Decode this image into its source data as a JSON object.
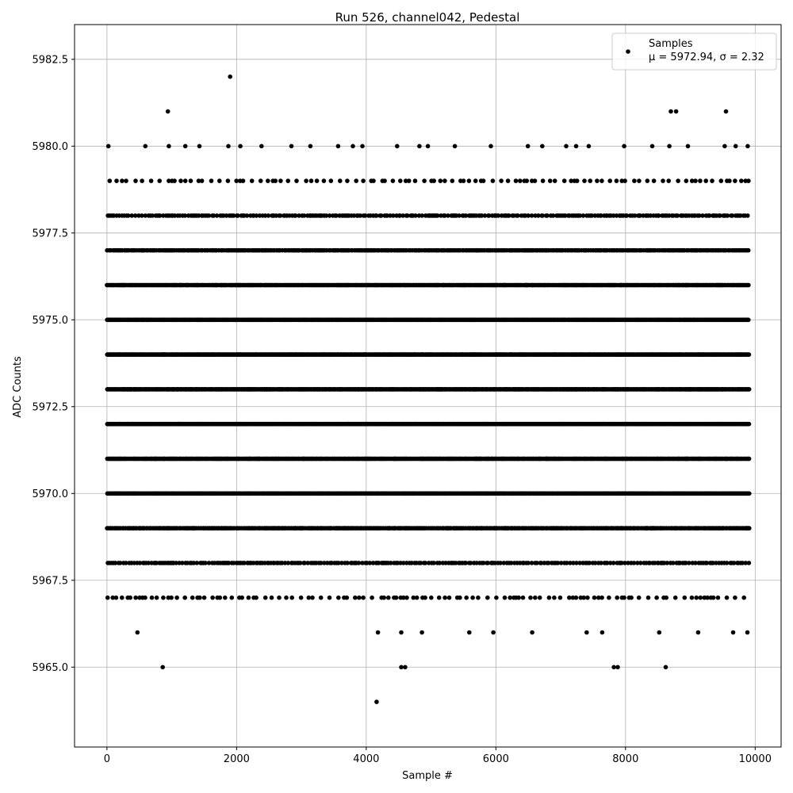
{
  "chart_data": {
    "type": "scatter",
    "title": "Run 526, channel042, Pedestal",
    "xlabel": "Sample #",
    "ylabel": "ADC Counts",
    "xlim": [
      -500,
      10400
    ],
    "ylim": [
      5962.7,
      5983.5
    ],
    "xticks": [
      0,
      2000,
      4000,
      6000,
      8000,
      10000
    ],
    "xtick_labels": [
      "0",
      "2000",
      "4000",
      "6000",
      "8000",
      "10000"
    ],
    "yticks": [
      5965.0,
      5967.5,
      5970.0,
      5972.5,
      5975.0,
      5977.5,
      5980.0,
      5982.5
    ],
    "ytick_labels": [
      "5965.0",
      "5967.5",
      "5970.0",
      "5972.5",
      "5975.0",
      "5977.5",
      "5980.0",
      "5982.5"
    ],
    "grid": true,
    "legend_position": "top-right",
    "series": [
      {
        "name": "Samples",
        "legend_stats": "μ = 5972.94, σ = 2.32",
        "color": "#000000",
        "marker": "circle",
        "mean": 5972.94,
        "std": 2.32,
        "n_samples": 10000,
        "x_range": [
          0,
          9910
        ],
        "sparse_points": [
          {
            "x": 940,
            "y": 5981
          },
          {
            "x": 1900,
            "y": 5982
          },
          {
            "x": 8700,
            "y": 5981
          },
          {
            "x": 8780,
            "y": 5981
          },
          {
            "x": 9550,
            "y": 5981
          },
          {
            "x": 860,
            "y": 5965
          },
          {
            "x": 4160,
            "y": 5964
          },
          {
            "x": 4540,
            "y": 5965
          },
          {
            "x": 4600,
            "y": 5965
          },
          {
            "x": 7820,
            "y": 5965
          },
          {
            "x": 7880,
            "y": 5965
          },
          {
            "x": 8620,
            "y": 5965
          },
          {
            "x": 470,
            "y": 5966
          },
          {
            "x": 4180,
            "y": 5966
          },
          {
            "x": 4540,
            "y": 5966
          },
          {
            "x": 4860,
            "y": 5966
          },
          {
            "x": 5590,
            "y": 5966
          },
          {
            "x": 5960,
            "y": 5966
          },
          {
            "x": 6560,
            "y": 5966
          },
          {
            "x": 7400,
            "y": 5966
          },
          {
            "x": 7640,
            "y": 5966
          },
          {
            "x": 8520,
            "y": 5966
          },
          {
            "x": 9120,
            "y": 5966
          },
          {
            "x": 9660,
            "y": 5966
          },
          {
            "x": 9880,
            "y": 5966
          }
        ]
      }
    ]
  }
}
